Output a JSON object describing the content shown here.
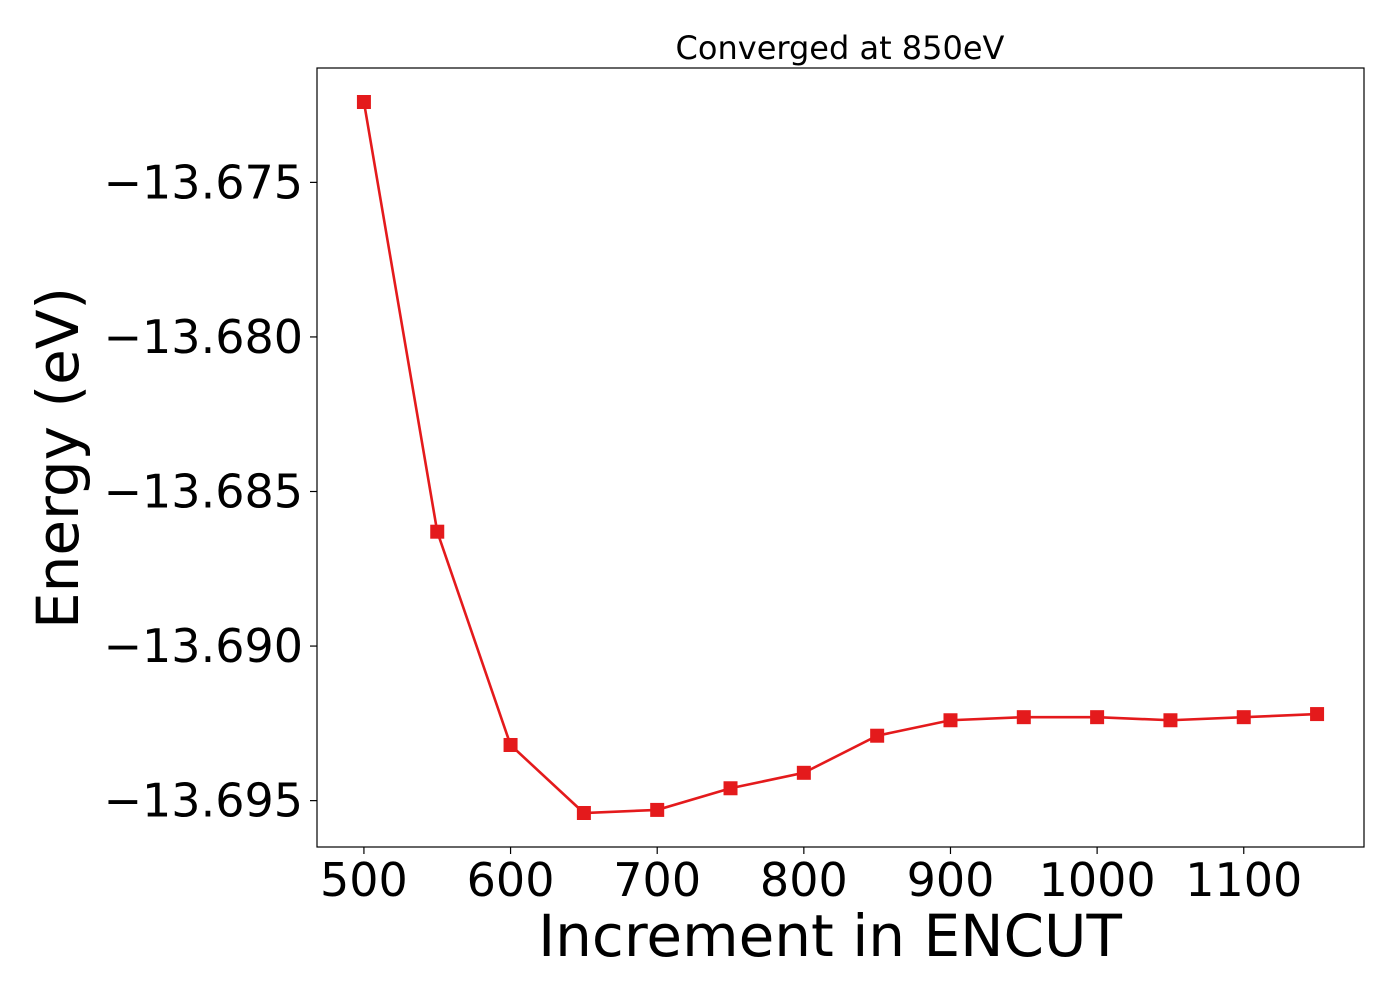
{
  "chart_data": {
    "type": "line",
    "title": "Converged at 850eV",
    "xlabel": "Increment in ENCUT",
    "ylabel": "Energy (eV)",
    "xlim": [
      468,
      1182
    ],
    "ylim": [
      -13.6965,
      -13.6713
    ],
    "xticks": [
      500,
      600,
      700,
      800,
      900,
      1000,
      1100
    ],
    "xtick_labels": [
      "500",
      "600",
      "700",
      "800",
      "900",
      "1000",
      "1100"
    ],
    "yticks": [
      -13.675,
      -13.68,
      -13.685,
      -13.69,
      -13.695
    ],
    "ytick_labels": [
      "−13.675",
      "−13.680",
      "−13.685",
      "−13.690",
      "−13.695"
    ],
    "grid": false,
    "series": [
      {
        "color": "#e41a1c",
        "marker": "square",
        "x": [
          500,
          550,
          600,
          650,
          700,
          750,
          800,
          850,
          900,
          950,
          1000,
          1050,
          1100,
          1150
        ],
        "y": [
          -13.6724,
          -13.6863,
          -13.6932,
          -13.6954,
          -13.6953,
          -13.6946,
          -13.6941,
          -13.6929,
          -13.6924,
          -13.6923,
          -13.6923,
          -13.6924,
          -13.6923,
          -13.6922
        ]
      }
    ]
  }
}
